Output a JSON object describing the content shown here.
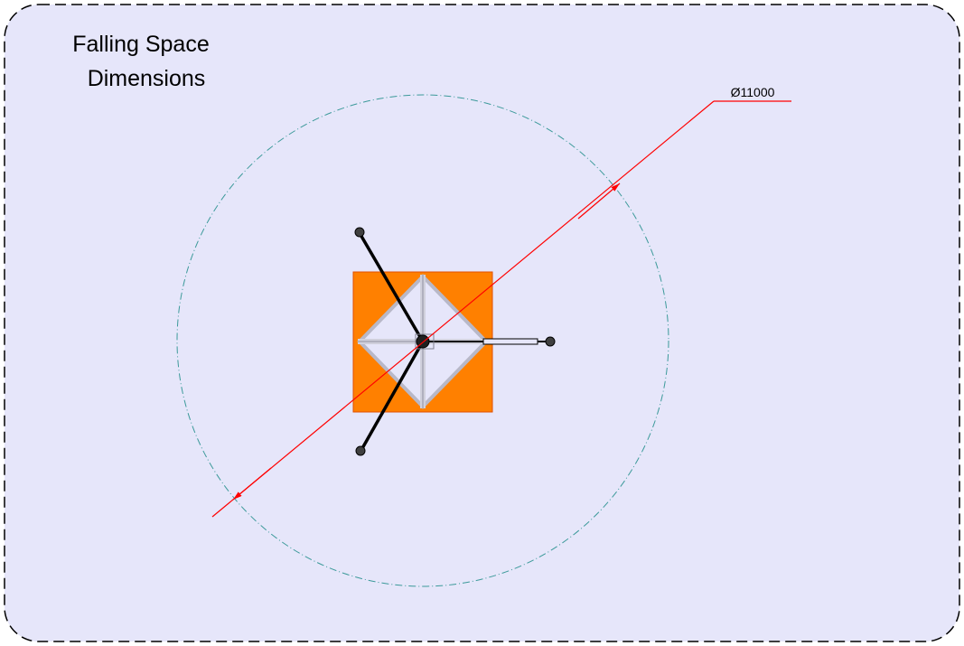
{
  "title": [
    "Falling Space",
    "Dimensions"
  ],
  "dimension_label": "Ø11000"
}
